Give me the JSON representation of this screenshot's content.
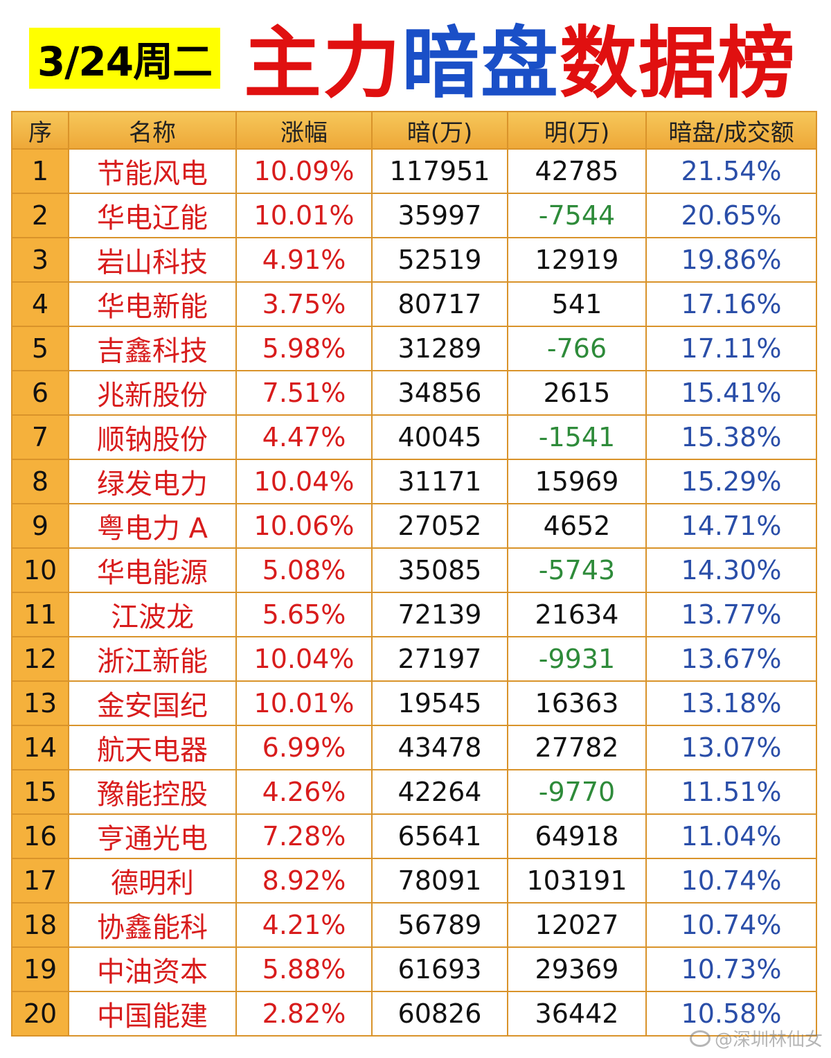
{
  "header": {
    "date": "3/24周二",
    "title_parts": [
      {
        "text": "主力",
        "color": "red"
      },
      {
        "text": "暗盘",
        "color": "blue"
      },
      {
        "text": "数据榜",
        "color": "red"
      }
    ]
  },
  "table": {
    "columns": [
      "序",
      "名称",
      "涨幅",
      "暗(万)",
      "明(万)",
      "暗盘/成交额"
    ],
    "rows": [
      [
        "1",
        "节能风电",
        "10.09%",
        "117951",
        "42785",
        "21.54%"
      ],
      [
        "2",
        "华电辽能",
        "10.01%",
        "35997",
        "-7544",
        "20.65%"
      ],
      [
        "3",
        "岩山科技",
        "4.91%",
        "52519",
        "12919",
        "19.86%"
      ],
      [
        "4",
        "华电新能",
        "3.75%",
        "80717",
        "541",
        "17.16%"
      ],
      [
        "5",
        "吉鑫科技",
        "5.98%",
        "31289",
        "-766",
        "17.11%"
      ],
      [
        "6",
        "兆新股份",
        "7.51%",
        "34856",
        "2615",
        "15.41%"
      ],
      [
        "7",
        "顺钠股份",
        "4.47%",
        "40045",
        "-1541",
        "15.38%"
      ],
      [
        "8",
        "绿发电力",
        "10.04%",
        "31171",
        "15969",
        "15.29%"
      ],
      [
        "9",
        "粤电力 A",
        "10.06%",
        "27052",
        "4652",
        "14.71%"
      ],
      [
        "10",
        "华电能源",
        "5.08%",
        "35085",
        "-5743",
        "14.30%"
      ],
      [
        "11",
        "江波龙",
        "5.65%",
        "72139",
        "21634",
        "13.77%"
      ],
      [
        "12",
        "浙江新能",
        "10.04%",
        "27197",
        "-9931",
        "13.67%"
      ],
      [
        "13",
        "金安国纪",
        "10.01%",
        "19545",
        "16363",
        "13.18%"
      ],
      [
        "14",
        "航天电器",
        "6.99%",
        "43478",
        "27782",
        "13.07%"
      ],
      [
        "15",
        "豫能控股",
        "4.26%",
        "42264",
        "-9770",
        "11.51%"
      ],
      [
        "16",
        "亨通光电",
        "7.28%",
        "65641",
        "64918",
        "11.04%"
      ],
      [
        "17",
        "德明利",
        "8.92%",
        "78091",
        "103191",
        "10.74%"
      ],
      [
        "18",
        "协鑫能科",
        "4.21%",
        "56789",
        "12027",
        "10.74%"
      ],
      [
        "19",
        "中油资本",
        "5.88%",
        "61693",
        "29369",
        "10.73%"
      ],
      [
        "20",
        "中国能建",
        "2.82%",
        "60826",
        "36442",
        "10.58%"
      ]
    ]
  },
  "watermark": "@深圳林仙女",
  "colors": {
    "red": "#e01010",
    "blue": "#1a4fc7",
    "negative": "#2e8b3a",
    "ratio": "#2a4ea8",
    "header_bg": "#f6c75a",
    "badge_bg": "#ffff00"
  }
}
